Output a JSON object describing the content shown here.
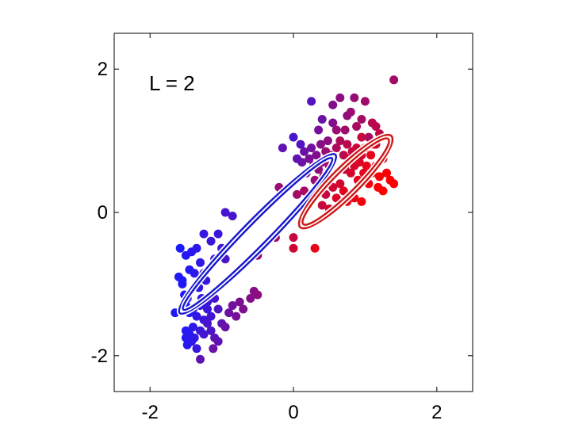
{
  "chart_data": {
    "type": "scatter",
    "title": "",
    "xlabel": "",
    "ylabel": "",
    "xlim": [
      -2.5,
      2.5
    ],
    "ylim": [
      -2.5,
      2.5
    ],
    "xticks": [
      -2,
      0,
      2
    ],
    "yticks": [
      -2,
      0,
      2
    ],
    "xtick_labels": [
      "-2",
      "0",
      "2"
    ],
    "ytick_labels": [
      "-2",
      "0",
      "2"
    ],
    "grid": false,
    "annotation": "L = 2",
    "color_scale": [
      "#1a1aff",
      "#ff0000"
    ],
    "points": [
      [
        -1.58,
        -0.5,
        0.0
      ],
      [
        -1.6,
        -0.9,
        0.02
      ],
      [
        -1.55,
        -1.0,
        0.03
      ],
      [
        -1.5,
        -0.6,
        0.05
      ],
      [
        -1.45,
        -0.8,
        0.05
      ],
      [
        -1.48,
        -1.2,
        0.04
      ],
      [
        -1.52,
        -1.15,
        0.03
      ],
      [
        -1.55,
        -0.95,
        0.02
      ],
      [
        -1.42,
        -0.55,
        0.06
      ],
      [
        -1.38,
        -0.85,
        0.08
      ],
      [
        -1.35,
        -0.5,
        0.08
      ],
      [
        -1.32,
        -1.05,
        0.1
      ],
      [
        -1.3,
        -0.7,
        0.1
      ],
      [
        -1.25,
        -0.85,
        0.12
      ],
      [
        -1.22,
        -0.95,
        0.12
      ],
      [
        -1.28,
        -1.2,
        0.1
      ],
      [
        -1.2,
        -1.35,
        0.14
      ],
      [
        -1.15,
        -0.4,
        0.15
      ],
      [
        -1.05,
        -0.3,
        0.15
      ],
      [
        -1.1,
        -0.65,
        0.15
      ],
      [
        -1.0,
        -0.5,
        0.18
      ],
      [
        -0.95,
        -0.65,
        0.2
      ],
      [
        -0.85,
        -0.05,
        0.2
      ],
      [
        -0.95,
        0.0,
        0.18
      ],
      [
        -1.25,
        -0.3,
        0.12
      ],
      [
        -1.65,
        -1.4,
        0.02
      ],
      [
        -1.5,
        -1.3,
        0.05
      ],
      [
        -1.45,
        -1.4,
        0.06
      ],
      [
        -1.4,
        -1.35,
        0.08
      ],
      [
        -1.35,
        -1.45,
        0.1
      ],
      [
        -1.3,
        -1.3,
        0.12
      ],
      [
        -1.25,
        -1.5,
        0.14
      ],
      [
        -1.2,
        -1.25,
        0.15
      ],
      [
        -1.15,
        -1.45,
        0.18
      ],
      [
        -1.1,
        -1.2,
        0.2
      ],
      [
        -1.05,
        -1.35,
        0.22
      ],
      [
        -1.5,
        -1.65,
        0.04
      ],
      [
        -1.5,
        -1.75,
        0.05
      ],
      [
        -1.48,
        -1.85,
        0.05
      ],
      [
        -1.45,
        -1.7,
        0.06
      ],
      [
        -1.42,
        -1.8,
        0.08
      ],
      [
        -1.4,
        -1.6,
        0.1
      ],
      [
        -1.38,
        -1.75,
        0.1
      ],
      [
        -1.35,
        -1.9,
        0.12
      ],
      [
        -1.3,
        -1.65,
        0.14
      ],
      [
        -1.25,
        -1.7,
        0.18
      ],
      [
        -1.2,
        -1.55,
        0.2
      ],
      [
        -1.15,
        -1.65,
        0.22
      ],
      [
        -1.1,
        -1.75,
        0.28
      ],
      [
        -1.05,
        -1.8,
        0.3
      ],
      [
        -1.0,
        -1.55,
        0.3
      ],
      [
        -0.95,
        -1.6,
        0.34
      ],
      [
        -0.9,
        -1.4,
        0.36
      ],
      [
        -0.85,
        -1.3,
        0.38
      ],
      [
        -0.8,
        -1.45,
        0.4
      ],
      [
        -0.75,
        -1.25,
        0.42
      ],
      [
        -0.7,
        -1.35,
        0.44
      ],
      [
        -1.3,
        -2.05,
        0.3
      ],
      [
        -1.12,
        -1.9,
        0.35
      ],
      [
        -0.55,
        -1.1,
        0.48
      ],
      [
        -0.5,
        -1.15,
        0.5
      ],
      [
        -0.6,
        -1.2,
        0.46
      ],
      [
        -0.5,
        -0.6,
        0.52
      ],
      [
        -0.25,
        -0.35,
        0.6
      ],
      [
        -0.2,
        0.35,
        0.55
      ],
      [
        -0.15,
        0.9,
        0.3
      ],
      [
        0.0,
        1.05,
        0.2
      ],
      [
        0.05,
        0.75,
        0.3
      ],
      [
        0.1,
        0.95,
        0.25
      ],
      [
        0.12,
        0.7,
        0.35
      ],
      [
        0.15,
        0.85,
        0.35
      ],
      [
        0.18,
        0.55,
        0.45
      ],
      [
        0.22,
        0.75,
        0.42
      ],
      [
        0.25,
        0.9,
        0.38
      ],
      [
        0.28,
        0.65,
        0.48
      ],
      [
        0.3,
        0.45,
        0.55
      ],
      [
        0.32,
        0.8,
        0.45
      ],
      [
        0.35,
        0.6,
        0.52
      ],
      [
        0.38,
        0.95,
        0.48
      ],
      [
        0.4,
        0.7,
        0.55
      ],
      [
        0.42,
        0.5,
        0.62
      ],
      [
        0.45,
        0.85,
        0.55
      ],
      [
        0.48,
        1.0,
        0.5
      ],
      [
        0.5,
        0.65,
        0.62
      ],
      [
        0.52,
        0.8,
        0.6
      ],
      [
        0.55,
        1.25,
        0.45
      ],
      [
        0.25,
        1.55,
        0.25
      ],
      [
        0.4,
        1.3,
        0.35
      ],
      [
        0.55,
        1.5,
        0.45
      ],
      [
        0.35,
        1.15,
        0.4
      ],
      [
        0.65,
        1.6,
        0.5
      ],
      [
        0.75,
        1.35,
        0.52
      ],
      [
        0.8,
        1.4,
        0.55
      ],
      [
        0.85,
        1.6,
        0.55
      ],
      [
        0.95,
        1.3,
        0.6
      ],
      [
        1.0,
        1.55,
        0.58
      ],
      [
        1.05,
        1.05,
        0.62
      ],
      [
        1.1,
        1.25,
        0.7
      ],
      [
        1.2,
        1.1,
        0.72
      ],
      [
        1.15,
        0.95,
        0.78
      ],
      [
        1.25,
        0.75,
        0.85
      ],
      [
        1.4,
        1.85,
        0.6
      ],
      [
        0.6,
        0.9,
        0.65
      ],
      [
        0.65,
        1.0,
        0.65
      ],
      [
        0.7,
        0.8,
        0.7
      ],
      [
        0.72,
        0.6,
        0.75
      ],
      [
        0.75,
        0.95,
        0.7
      ],
      [
        0.78,
        0.75,
        0.78
      ],
      [
        0.8,
        0.55,
        0.82
      ],
      [
        0.82,
        0.85,
        0.75
      ],
      [
        0.85,
        0.65,
        0.82
      ],
      [
        0.88,
        0.9,
        0.78
      ],
      [
        0.9,
        0.45,
        0.88
      ],
      [
        0.92,
        0.7,
        0.85
      ],
      [
        0.95,
        0.8,
        0.82
      ],
      [
        0.98,
        0.55,
        0.9
      ],
      [
        1.0,
        0.9,
        0.85
      ],
      [
        1.02,
        0.65,
        0.9
      ],
      [
        1.05,
        0.4,
        0.95
      ],
      [
        1.08,
        0.8,
        0.9
      ],
      [
        1.1,
        0.55,
        0.95
      ],
      [
        1.12,
        0.95,
        0.88
      ],
      [
        1.15,
        0.65,
        0.95
      ],
      [
        1.18,
        0.35,
        0.98
      ],
      [
        1.2,
        0.5,
        0.98
      ],
      [
        1.25,
        0.3,
        1.0
      ],
      [
        1.3,
        0.55,
        0.98
      ],
      [
        1.35,
        0.45,
        1.0
      ],
      [
        1.4,
        0.4,
        1.0
      ],
      [
        0.55,
        0.35,
        0.8
      ],
      [
        0.6,
        0.2,
        0.85
      ],
      [
        0.65,
        0.4,
        0.82
      ],
      [
        0.7,
        0.3,
        0.88
      ],
      [
        0.75,
        0.15,
        0.9
      ],
      [
        0.45,
        0.25,
        0.75
      ],
      [
        0.4,
        0.1,
        0.75
      ],
      [
        0.35,
        0.3,
        0.7
      ],
      [
        0.15,
        0.3,
        0.62
      ],
      [
        0.05,
        0.25,
        0.6
      ],
      [
        0.5,
        0.05,
        0.82
      ],
      [
        0.85,
        0.2,
        0.92
      ],
      [
        0.95,
        0.15,
        0.95
      ],
      [
        0.3,
        -0.5,
        0.9
      ],
      [
        0.0,
        -0.5,
        0.8
      ],
      [
        0.0,
        -0.35,
        0.75
      ],
      [
        0.95,
        1.05,
        0.75
      ],
      [
        0.6,
        1.15,
        0.55
      ],
      [
        0.72,
        1.15,
        0.58
      ],
      [
        1.15,
        1.2,
        0.7
      ],
      [
        0.88,
        1.2,
        0.62
      ]
    ],
    "ellipses": [
      {
        "center": [
          -0.5,
          -0.3
        ],
        "major": 1.55,
        "minor": 0.2,
        "angle_deg": 45.5,
        "color": "#1a1acc"
      },
      {
        "center": [
          -0.5,
          -0.3
        ],
        "major": 1.48,
        "minor": 0.15,
        "angle_deg": 45.5,
        "color": "#1a1acc"
      },
      {
        "center": [
          0.73,
          0.43
        ],
        "major": 0.9,
        "minor": 0.2,
        "angle_deg": 45,
        "color": "#cc1a1a"
      },
      {
        "center": [
          0.73,
          0.43
        ],
        "major": 0.84,
        "minor": 0.15,
        "angle_deg": 45,
        "color": "#cc1a1a"
      }
    ]
  }
}
